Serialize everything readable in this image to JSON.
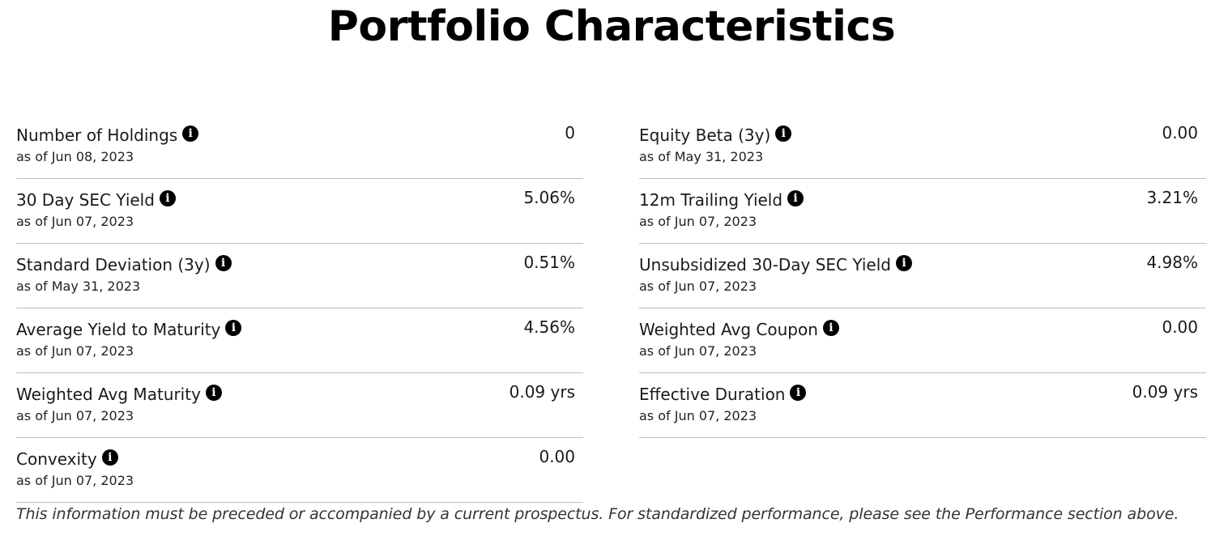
{
  "title": "Portfolio Characteristics",
  "left_column": [
    {
      "label": "Number of Holdings",
      "as_of": "as of Jun 08, 2023",
      "value": "0"
    },
    {
      "label": "30 Day SEC Yield",
      "as_of": "as of Jun 07, 2023",
      "value": "5.06%"
    },
    {
      "label": "Standard Deviation (3y)",
      "as_of": "as of May 31, 2023",
      "value": "0.51%"
    },
    {
      "label": "Average Yield to Maturity",
      "as_of": "as of Jun 07, 2023",
      "value": "4.56%"
    },
    {
      "label": "Weighted Avg Maturity",
      "as_of": "as of Jun 07, 2023",
      "value": "0.09 yrs"
    },
    {
      "label": "Convexity",
      "as_of": "as of Jun 07, 2023",
      "value": "0.00"
    }
  ],
  "right_column": [
    {
      "label": "Equity Beta (3y)",
      "as_of": "as of May 31, 2023",
      "value": "0.00"
    },
    {
      "label": "12m Trailing Yield",
      "as_of": "as of Jun 07, 2023",
      "value": "3.21%"
    },
    {
      "label": "Unsubsidized 30-Day SEC Yield",
      "as_of": "as of Jun 07, 2023",
      "value": "4.98%"
    },
    {
      "label": "Weighted Avg Coupon",
      "as_of": "as of Jun 07, 2023",
      "value": "0.00"
    },
    {
      "label": "Effective Duration",
      "as_of": "as of Jun 07, 2023",
      "value": "0.09 yrs"
    }
  ],
  "info_icon": {
    "name": "info-icon",
    "glyph": "i"
  },
  "disclaimer": "This information must be preceded or accompanied by a current prospectus. For standardized performance, please see the Performance section above."
}
